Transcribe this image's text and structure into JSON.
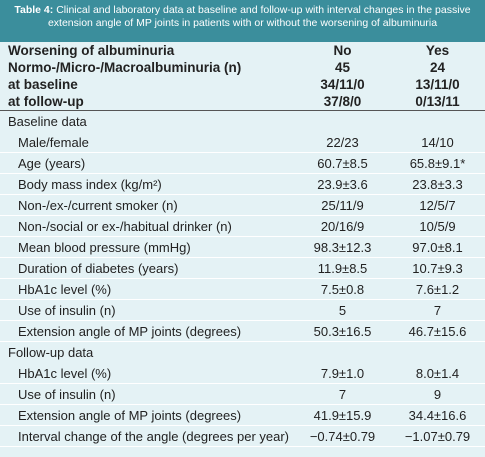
{
  "header": {
    "label": "Table 4:",
    "title": "Clinical and laboratory data at baseline and follow-up with interval changes in the passive extension angle of MP joints in patients with or without the worsening of albuminuria"
  },
  "table": {
    "head": [
      [
        "Worsening of albuminuria",
        "No",
        "Yes"
      ],
      [
        "Normo-/Micro-/Macroalbuminuria (n)",
        "45",
        "24"
      ],
      [
        "at baseline",
        "34/11/0",
        "13/11/0"
      ],
      [
        "at follow-up",
        "37/8/0",
        "0/13/11"
      ]
    ],
    "sections": [
      {
        "title": "Baseline data",
        "rows": [
          [
            "Male/female",
            "22/23",
            "14/10"
          ],
          [
            "Age (years)",
            "60.7±8.5",
            "65.8±9.1*"
          ],
          [
            "Body mass index (kg/m²)",
            "23.9±3.6",
            "23.8±3.3"
          ],
          [
            "Non-/ex-/current smoker (n)",
            "25/11/9",
            "12/5/7"
          ],
          [
            "Non-/social or ex-/habitual drinker (n)",
            "20/16/9",
            "10/5/9"
          ],
          [
            "Mean blood pressure (mmHg)",
            "98.3±12.3",
            "97.0±8.1"
          ],
          [
            "Duration of diabetes (years)",
            "11.9±8.5",
            "10.7±9.3"
          ],
          [
            "HbA1c level (%)",
            "7.5±0.8",
            "7.6±1.2"
          ],
          [
            "Use of insulin (n)",
            "5",
            "7"
          ],
          [
            "Extension angle of MP joints (degrees)",
            "50.3±16.5",
            "46.7±15.6"
          ]
        ]
      },
      {
        "title": "Follow-up data",
        "rows": [
          [
            "HbA1c level (%)",
            "7.9±1.0",
            "8.0±1.4"
          ],
          [
            "Use of insulin (n)",
            "7",
            "9"
          ],
          [
            "Extension angle of MP joints (degrees)",
            "41.9±15.9",
            "34.4±16.6"
          ],
          [
            "Interval change of the angle (degrees per year)",
            "−0.74±0.79",
            "−1.07±0.79"
          ]
        ]
      }
    ]
  }
}
